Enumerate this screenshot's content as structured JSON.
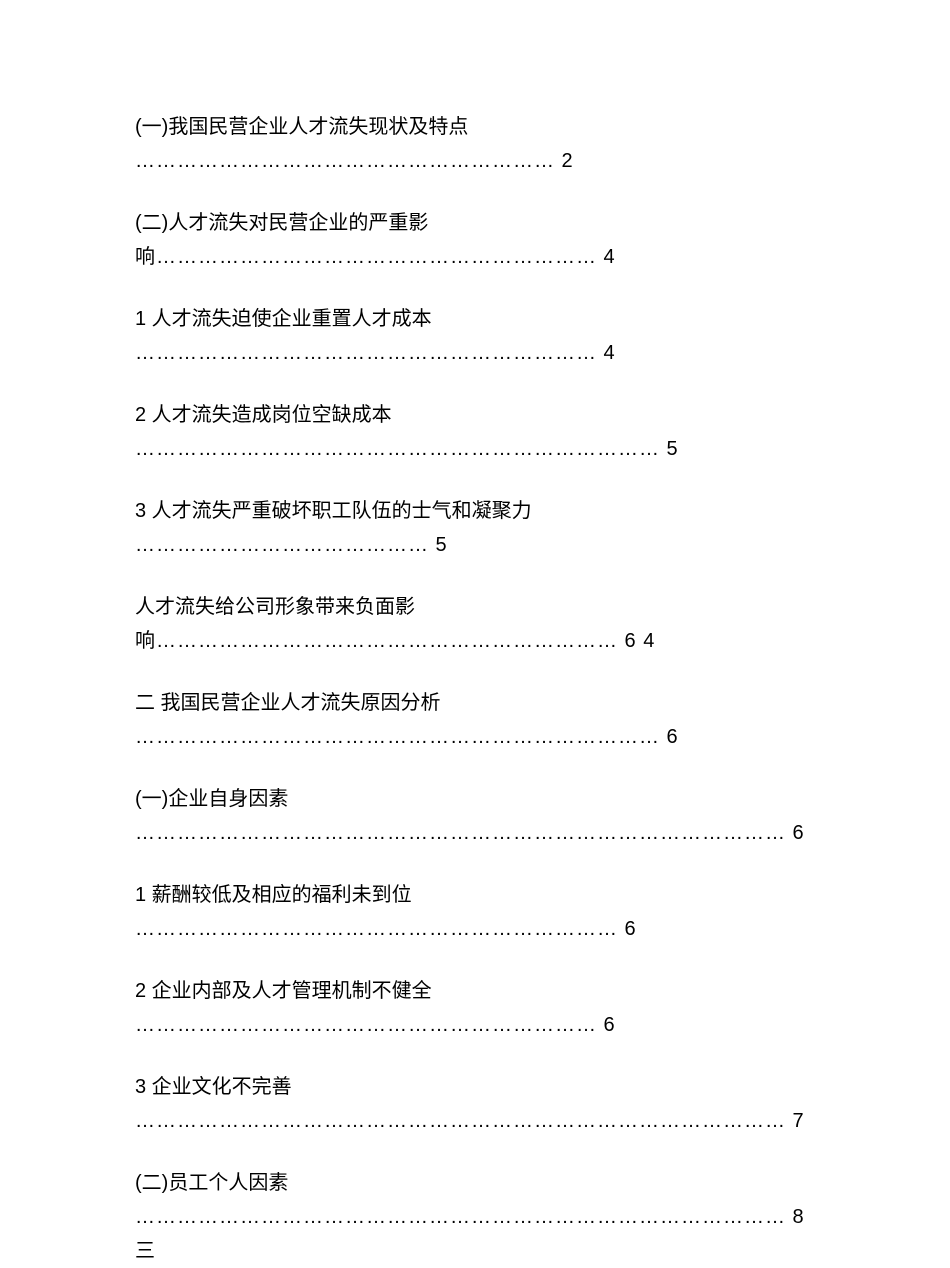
{
  "document": {
    "background_color": "#ffffff",
    "text_color": "#000000",
    "font_size": 20,
    "entries": [
      {
        "title": "(一)我国民营企业人才流失现状及特点",
        "dots": "……………………………………………………  2"
      },
      {
        "title": "(二)人才流失对民营企业的严重影",
        "dots": "响………………………………………………………  4"
      },
      {
        "title": "1 人才流失迫使企业重置人才成本",
        "dots": "…………………………………………………………  4"
      },
      {
        "title": "2 人才流失造成岗位空缺成本",
        "dots": "…………………………………………………………………  5"
      },
      {
        "title": "3 人才流失严重破坏职工队伍的士气和凝聚力",
        "dots": "……………………………………  5"
      },
      {
        "title": "人才流失给公司形象带来负面影",
        "dots": "响…………………………………………………………  6  4"
      },
      {
        "title": "二 我国民营企业人才流失原因分析",
        "dots": "…………………………………………………………………  6"
      },
      {
        "title": "(一)企业自身因素",
        "dots": "…………………………………………………………………………………  6"
      },
      {
        "title": "1 薪酬较低及相应的福利未到位",
        "dots": "……………………………………………………………  6"
      },
      {
        "title": "2 企业内部及人才管理机制不健全",
        "dots": "…………………………………………………………  6"
      },
      {
        "title": "3 企业文化不完善",
        "dots": "…………………………………………………………………………………  7"
      },
      {
        "title": "(二)员工个人因素",
        "dots": "…………………………………………………………………………………  8  三"
      }
    ]
  }
}
